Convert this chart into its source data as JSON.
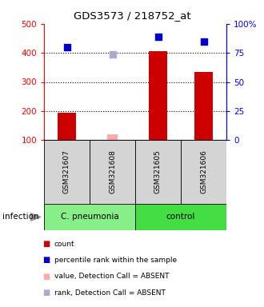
{
  "title": "GDS3573 / 218752_at",
  "samples": [
    "GSM321607",
    "GSM321608",
    "GSM321605",
    "GSM321606"
  ],
  "count_values": [
    195,
    null,
    405,
    335
  ],
  "count_absent_values": [
    null,
    120,
    null,
    null
  ],
  "percentile_values": [
    420,
    null,
    455,
    440
  ],
  "percentile_absent_values": [
    null,
    395,
    null,
    null
  ],
  "groups": [
    {
      "label": "C. pneumonia",
      "indices": [
        0,
        1
      ],
      "color": "#88ee88"
    },
    {
      "label": "control",
      "indices": [
        2,
        3
      ],
      "color": "#44dd44"
    }
  ],
  "ylim_left": [
    100,
    500
  ],
  "ylim_right": [
    0,
    100
  ],
  "yticks_left": [
    100,
    200,
    300,
    400,
    500
  ],
  "yticks_right": [
    0,
    25,
    50,
    75,
    100
  ],
  "ytick_labels_right": [
    "0",
    "25",
    "50",
    "75",
    "100%"
  ],
  "bar_color": "#cc0000",
  "bar_absent_color": "#ffaaaa",
  "dot_color": "#0000cc",
  "dot_absent_color": "#aaaacc",
  "bar_width": 0.4,
  "dot_size": 40,
  "grid_dotted_ticks": [
    200,
    300,
    400
  ],
  "infection_label": "infection",
  "legend_items": [
    {
      "color": "#cc0000",
      "marker": "s",
      "label": "count"
    },
    {
      "color": "#0000cc",
      "marker": "s",
      "label": "percentile rank within the sample"
    },
    {
      "color": "#ffaaaa",
      "marker": "s",
      "label": "value, Detection Call = ABSENT"
    },
    {
      "color": "#aaaacc",
      "marker": "s",
      "label": "rank, Detection Call = ABSENT"
    }
  ]
}
